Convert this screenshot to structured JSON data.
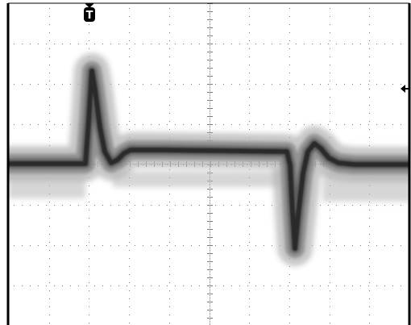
{
  "screen": {
    "trigger_marker": {
      "label": "T",
      "icon": "trigger-position-icon"
    },
    "trigger_level_marker": {
      "icon": "trigger-level-arrow-icon"
    },
    "grid": {
      "divisions_x": 10,
      "divisions_y": 8,
      "style": "dotted"
    },
    "colors": {
      "background": "#ffffff",
      "frame": "#000000",
      "grid": "#7a7a7a",
      "trace_core": "#2a2a2a",
      "trace_persistence": "#b5b5b5"
    }
  }
}
